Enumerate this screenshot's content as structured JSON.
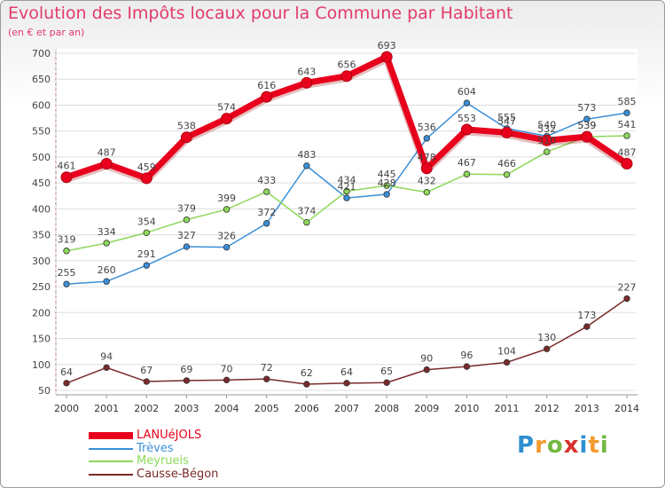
{
  "chart_data": {
    "type": "line",
    "title": "Evolution des Impôts locaux pour la Commune par Habitant",
    "subtitle": "(en € et par an)",
    "x": [
      2000,
      2001,
      2002,
      2003,
      2004,
      2005,
      2006,
      2007,
      2008,
      2009,
      2010,
      2011,
      2012,
      2013,
      2014
    ],
    "ylim": [
      50,
      700
    ],
    "yticks": [
      50,
      100,
      150,
      200,
      250,
      300,
      350,
      400,
      450,
      500,
      550,
      600,
      650,
      700
    ],
    "grid": true,
    "series": [
      {
        "name": "LANUéJOLS",
        "color": "#e8001c",
        "values": [
          461,
          487,
          459,
          538,
          574,
          616,
          643,
          656,
          693,
          478,
          553,
          547,
          532,
          539,
          487
        ]
      },
      {
        "name": "Trèves",
        "color": "#3b8fd8",
        "values": [
          255,
          260,
          291,
          327,
          326,
          372,
          483,
          421,
          428,
          536,
          604,
          555,
          540,
          573,
          585
        ]
      },
      {
        "name": "Meyrueis",
        "color": "#8ed85a",
        "values": [
          319,
          334,
          354,
          379,
          399,
          433,
          374,
          434,
          445,
          432,
          467,
          466,
          510,
          539,
          541
        ]
      },
      {
        "name": "Causse-Bégon",
        "color": "#7a2a2a",
        "values": [
          64,
          94,
          67,
          69,
          70,
          72,
          62,
          64,
          65,
          90,
          96,
          104,
          130,
          173,
          227
        ]
      }
    ],
    "legend_position": "bottom-left"
  },
  "logo": {
    "text": "Proxiti"
  }
}
